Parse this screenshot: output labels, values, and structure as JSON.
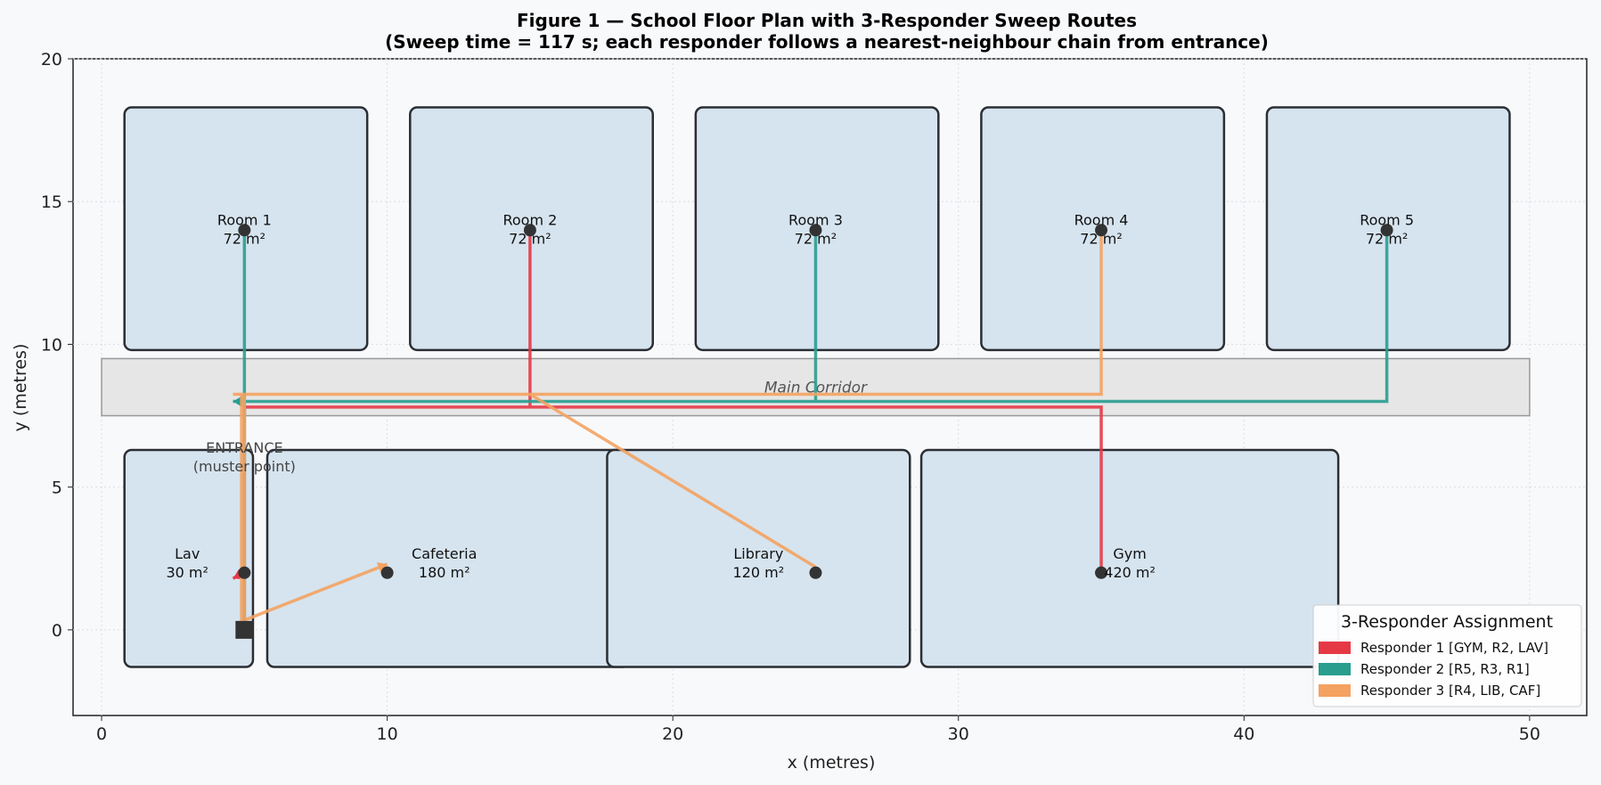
{
  "chart_data": {
    "type": "floor-plan",
    "title": "Figure 1 — School Floor Plan with 3-Responder Sweep Routes",
    "subtitle": "(Sweep time = 117 s; each responder follows a nearest-neighbour chain from entrance)",
    "xlabel": "x (metres)",
    "ylabel": "y (metres)",
    "xlim": [
      -1,
      52
    ],
    "ylim": [
      -3,
      20
    ],
    "xticks": [
      0,
      10,
      20,
      30,
      40,
      50
    ],
    "yticks": [
      0,
      5,
      10,
      15,
      20
    ],
    "grid": true,
    "legend_position": "lower-right",
    "legend_title": "3-Responder Assignment",
    "corridor": {
      "label": "Main Corridor",
      "x0": 0,
      "x1": 50,
      "y0": 7.5,
      "y1": 9.5
    },
    "rooms": [
      {
        "name": "Room 1",
        "area": "72 m²",
        "x0": 0.8,
        "x1": 9.3,
        "y0": 9.8,
        "y1": 18.3,
        "cx": 5,
        "cy": 14
      },
      {
        "name": "Room 2",
        "area": "72 m²",
        "x0": 10.8,
        "x1": 19.3,
        "y0": 9.8,
        "y1": 18.3,
        "cx": 15,
        "cy": 14
      },
      {
        "name": "Room 3",
        "area": "72 m²",
        "x0": 20.8,
        "x1": 29.3,
        "y0": 9.8,
        "y1": 18.3,
        "cx": 25,
        "cy": 14
      },
      {
        "name": "Room 4",
        "area": "72 m²",
        "x0": 30.8,
        "x1": 39.3,
        "y0": 9.8,
        "y1": 18.3,
        "cx": 35,
        "cy": 14
      },
      {
        "name": "Room 5",
        "area": "72 m²",
        "x0": 40.8,
        "x1": 49.3,
        "y0": 9.8,
        "y1": 18.3,
        "cx": 45,
        "cy": 14
      },
      {
        "name": "Lav",
        "area": "30 m²",
        "x0": 0.8,
        "x1": 5.3,
        "y0": -1.3,
        "y1": 6.3,
        "cx": 5,
        "cy": 2
      },
      {
        "name": "Cafeteria",
        "area": "180 m²",
        "x0": 5.8,
        "x1": 18.5,
        "y0": -1.3,
        "y1": 6.3,
        "cx": 10,
        "cy": 2
      },
      {
        "name": "Library",
        "area": "120 m²",
        "x0": 17.7,
        "x1": 28.3,
        "y0": -1.3,
        "y1": 6.3,
        "cx": 25,
        "cy": 2
      },
      {
        "name": "Gym",
        "area": "420 m²",
        "x0": 28.7,
        "x1": 43.3,
        "y0": -1.3,
        "y1": 6.3,
        "cx": 35,
        "cy": 2
      }
    ],
    "entrance": {
      "label": "ENTRANCE",
      "sublabel": "(muster point)",
      "x": 5,
      "y": 0
    },
    "series": [
      {
        "name": "Responder 1  [GYM, R2, LAV]",
        "color": "#e63946",
        "points": [
          [
            5,
            0
          ],
          [
            5,
            7.8
          ],
          [
            35,
            7.8
          ],
          [
            35,
            2
          ],
          [
            35,
            7.8
          ],
          [
            15,
            7.8
          ],
          [
            15,
            14
          ],
          [
            15,
            7.8
          ],
          [
            5,
            7.8
          ],
          [
            5,
            2
          ],
          [
            4.6,
            1.8
          ]
        ]
      },
      {
        "name": "Responder 2  [R5, R3, R1]",
        "color": "#2a9d8f",
        "points": [
          [
            5,
            0
          ],
          [
            5,
            8
          ],
          [
            45,
            8
          ],
          [
            45,
            14
          ],
          [
            45,
            8
          ],
          [
            25,
            8
          ],
          [
            25,
            14
          ],
          [
            25,
            8
          ],
          [
            5,
            8
          ],
          [
            5,
            14
          ],
          [
            5,
            8
          ],
          [
            4.6,
            8
          ]
        ]
      },
      {
        "name": "Responder 3  [R4, LIB, CAF]",
        "color": "#f4a261",
        "points": [
          [
            5,
            0
          ],
          [
            5,
            8.25
          ],
          [
            35,
            8.25
          ],
          [
            35,
            14
          ],
          [
            35,
            8.25
          ],
          [
            15,
            8.25
          ],
          [
            25,
            2.2
          ],
          [
            15,
            8.25
          ],
          [
            4.6,
            8.25
          ],
          [
            4.9,
            8.25
          ],
          [
            4.9,
            0.3
          ],
          [
            10,
            2.3
          ]
        ]
      }
    ]
  }
}
